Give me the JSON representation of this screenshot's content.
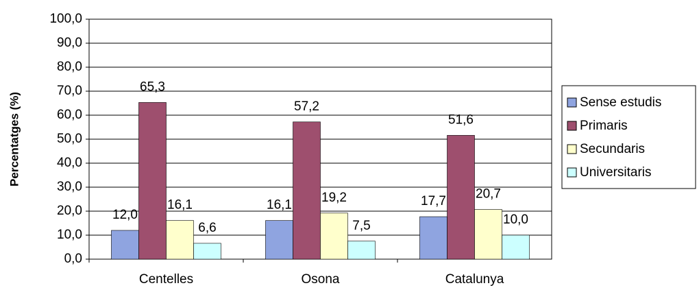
{
  "chart_data": {
    "type": "bar",
    "y_label": "Percentatges (%)",
    "categories": [
      "Centelles",
      "Osona",
      "Catalunya"
    ],
    "series": [
      {
        "name": "Sense estudis",
        "color": "#8fa4e0",
        "values": [
          12.0,
          16.1,
          17.7
        ],
        "value_labels": [
          "12,0",
          "16,1",
          "17,7"
        ]
      },
      {
        "name": "Primaris",
        "color": "#9e4f6e",
        "values": [
          65.3,
          57.2,
          51.6
        ],
        "value_labels": [
          "65,3",
          "57,2",
          "51,6"
        ]
      },
      {
        "name": "Secundaris",
        "color": "#ffffcc",
        "values": [
          16.1,
          19.2,
          20.7
        ],
        "value_labels": [
          "16,1",
          "19,2",
          "20,7"
        ]
      },
      {
        "name": "Universitaris",
        "color": "#ccffff",
        "values": [
          6.6,
          7.5,
          10.0
        ],
        "value_labels": [
          "6,6",
          "7,5",
          "10,0"
        ]
      }
    ],
    "ylim": [
      0,
      100
    ],
    "yticks": [
      {
        "value": 0,
        "label": "0,0"
      },
      {
        "value": 10,
        "label": "10,0"
      },
      {
        "value": 20,
        "label": "20,0"
      },
      {
        "value": 30,
        "label": "30,0"
      },
      {
        "value": 40,
        "label": "40,0"
      },
      {
        "value": 50,
        "label": "50,0"
      },
      {
        "value": 60,
        "label": "60,0"
      },
      {
        "value": 70,
        "label": "70,0"
      },
      {
        "value": 80,
        "label": "80,0"
      },
      {
        "value": 90,
        "label": "90,0"
      },
      {
        "value": 100,
        "label": "100,0"
      }
    ],
    "grid": true,
    "legend": "right"
  }
}
